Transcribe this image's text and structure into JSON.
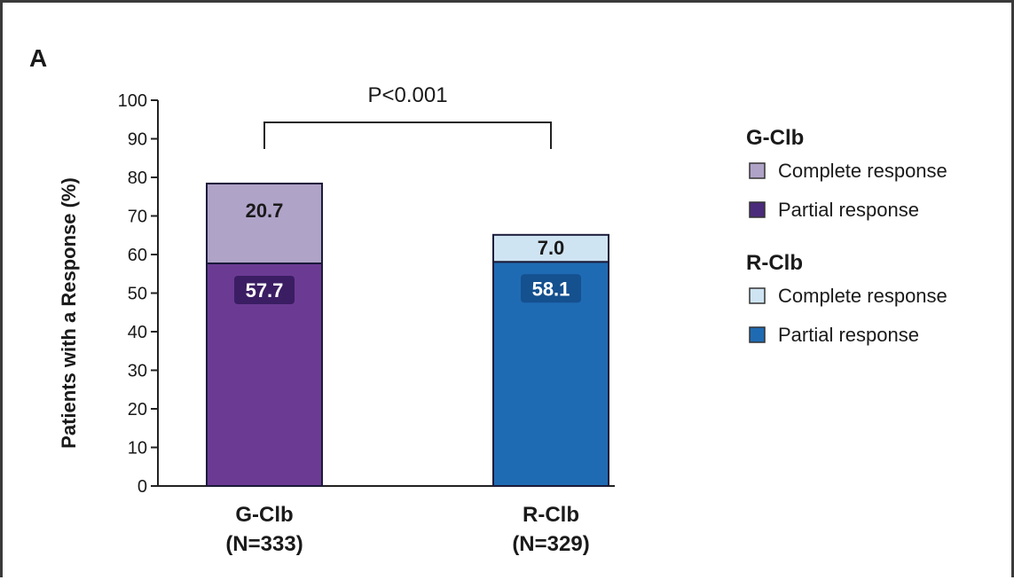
{
  "panel_label": "A",
  "chart_data": {
    "type": "bar",
    "stacked": true,
    "categories": [
      "G-Clb",
      "R-Clb"
    ],
    "category_sublabels": [
      "(N=333)",
      "(N=329)"
    ],
    "series": [
      {
        "name": "Partial response",
        "values": [
          57.7,
          58.1
        ],
        "colors": [
          "#6b3b93",
          "#1f6bb3"
        ]
      },
      {
        "name": "Complete response",
        "values": [
          20.7,
          7.0
        ],
        "colors": [
          "#b0a3c8",
          "#cfe4f2"
        ]
      }
    ],
    "xlabel": "",
    "ylabel": "Patients with a Response (%)",
    "ylim": [
      0,
      100
    ],
    "yticks": [
      0,
      10,
      20,
      30,
      40,
      50,
      60,
      70,
      80,
      90,
      100
    ],
    "annotation": "P<0.001",
    "grid": false,
    "legend_position": "right",
    "legend": [
      {
        "group": "G-Clb",
        "items": [
          {
            "label": "Complete response",
            "color": "#b0a3c8"
          },
          {
            "label": "Partial response",
            "color": "#4a2a7a"
          }
        ]
      },
      {
        "group": "R-Clb",
        "items": [
          {
            "label": "Complete response",
            "color": "#cfe4f2"
          },
          {
            "label": "Partial response",
            "color": "#1f6bb3"
          }
        ]
      }
    ]
  }
}
